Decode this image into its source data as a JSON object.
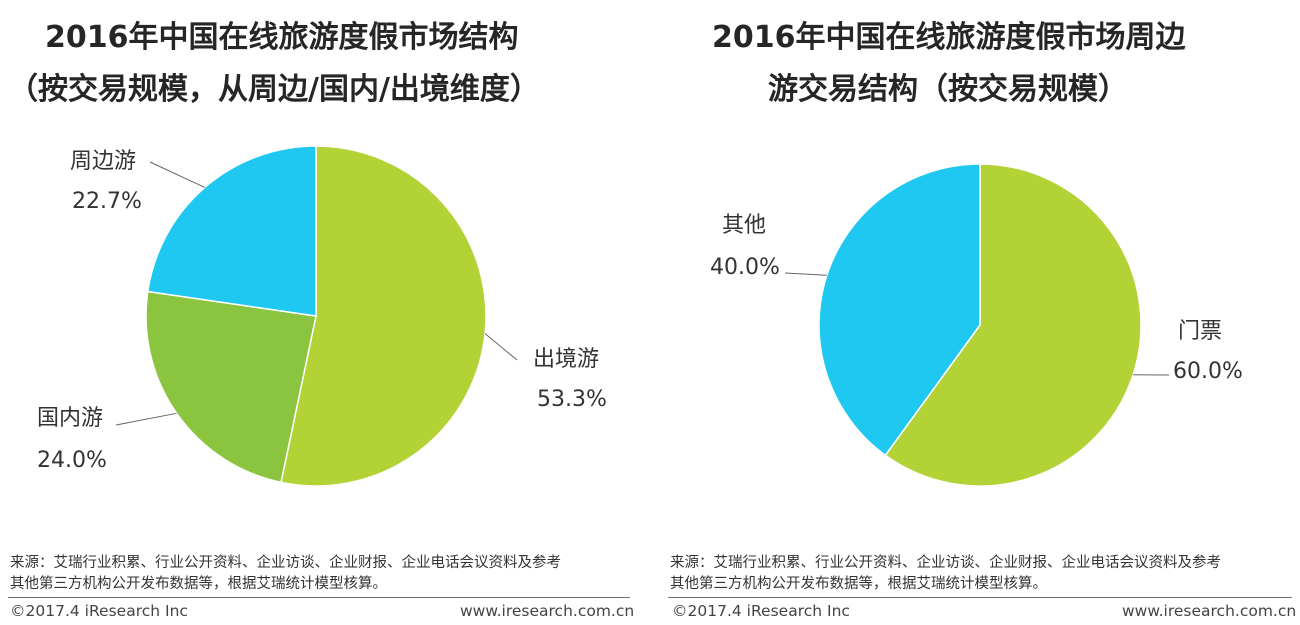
{
  "panels": [
    {
      "title_line1": "2016年中国在线旅游度假市场结构",
      "title_line2": "（按交易规模，从周边/国内/出境维度）",
      "source_line1": "来源：艾瑞行业积累、行业公开资料、企业访谈、企业财报、企业电话会议资料及参考",
      "source_line2": "其他第三方机构公开发布数据等，根据艾瑞统计模型核算。",
      "copyright": "©2017.4 iResearch Inc",
      "website": "www.iresearch.com.cn"
    },
    {
      "title_line1": "2016年中国在线旅游度假市场周边",
      "title_line2": "游交易结构（按交易规模）",
      "source_line1": "来源：艾瑞行业积累、行业公开资料、企业访谈、企业财报、企业电话会议资料及参考",
      "source_line2": "其他第三方机构公开发布数据等，根据艾瑞统计模型核算。",
      "copyright": "©2017.4 iResearch Inc",
      "website": "www.iresearch.com.cn"
    }
  ],
  "chart_data": [
    {
      "type": "pie",
      "title": "2016年中国在线旅游度假市场结构（按交易规模，从周边/国内/出境维度）",
      "slices": [
        {
          "label": "出境游",
          "value": 53.3,
          "display": "53.3%",
          "color": "#b2d235"
        },
        {
          "label": "国内游",
          "value": 24.0,
          "display": "24.0%",
          "color": "#8bc53f"
        },
        {
          "label": "周边游",
          "value": 22.7,
          "display": "22.7%",
          "color": "#1ec8f0"
        }
      ]
    },
    {
      "type": "pie",
      "title": "2016年中国在线旅游度假市场周边游交易结构（按交易规模）",
      "slices": [
        {
          "label": "门票",
          "value": 60.0,
          "display": "60.0%",
          "color": "#b2d235"
        },
        {
          "label": "其他",
          "value": 40.0,
          "display": "40.0%",
          "color": "#1ec8f0"
        }
      ]
    }
  ]
}
